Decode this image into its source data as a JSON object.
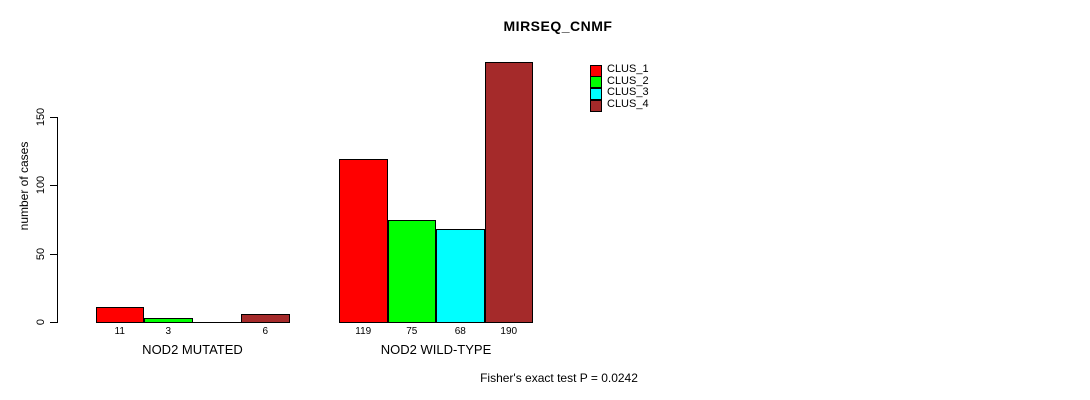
{
  "chart": {
    "title": "MIRSEQ_CNMF",
    "ylabel": "number of cases",
    "footer": "Fisher's exact test P = 0.0242"
  },
  "chart_data": {
    "type": "bar",
    "title": "MIRSEQ_CNMF",
    "xlabel": "",
    "ylabel": "number of cases",
    "categories": [
      "NOD2 MUTATED",
      "NOD2 WILD-TYPE"
    ],
    "series": [
      {
        "name": "CLUS_1",
        "color": "#FF0000",
        "values": [
          11,
          119
        ]
      },
      {
        "name": "CLUS_2",
        "color": "#00FF00",
        "values": [
          3,
          75
        ]
      },
      {
        "name": "CLUS_3",
        "color": "#00FFFF",
        "values": [
          0,
          68
        ]
      },
      {
        "name": "CLUS_4",
        "color": "#A52A2A",
        "values": [
          6,
          190
        ]
      }
    ],
    "bar_value_labels": [
      [
        "11",
        "3",
        "",
        "6"
      ],
      [
        "119",
        "75",
        "68",
        "190"
      ]
    ],
    "yticks": [
      0,
      50,
      100,
      150
    ],
    "ylim": [
      0,
      150
    ],
    "grid": false,
    "legend_position": "top-right",
    "legend_entries": [
      "CLUS_1",
      "CLUS_2",
      "CLUS_3",
      "CLUS_4"
    ],
    "annotation": "Fisher's exact test P = 0.0242"
  }
}
